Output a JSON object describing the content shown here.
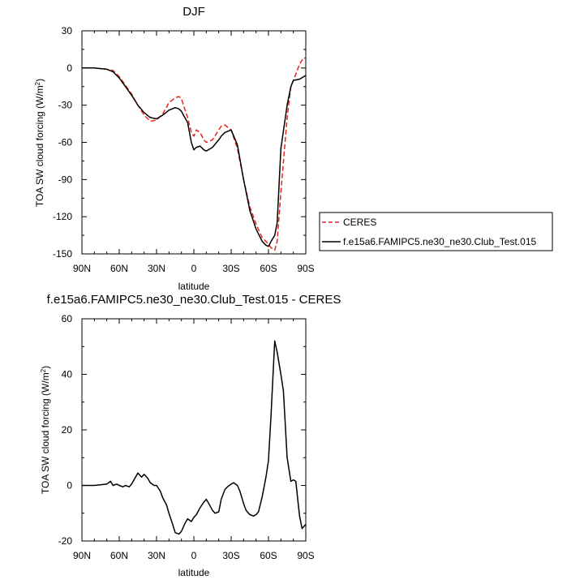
{
  "chart_data": [
    {
      "type": "line",
      "title": "DJF",
      "xlabel": "latitude",
      "ylabel": "TOA SW cloud forcing (W/m",
      "ylabel_sup": "2",
      "ylabel_close": ")",
      "xlim": [
        90,
        -90
      ],
      "ylim": [
        -150,
        30
      ],
      "xticks": [
        90,
        60,
        30,
        0,
        -30,
        -60,
        -90
      ],
      "xtick_labels": [
        "90N",
        "60N",
        "30N",
        "0",
        "30S",
        "60S",
        "90S"
      ],
      "yticks": [
        30,
        0,
        -30,
        -60,
        -90,
        -120,
        -150
      ],
      "ytick_labels": [
        "30",
        "0",
        "-30",
        "-60",
        "-90",
        "-120",
        "-150"
      ],
      "legend": "right",
      "series": [
        {
          "name": "CERES",
          "color": "#e8231f",
          "style": "dashed",
          "x": [
            90,
            80,
            70,
            65,
            60,
            55,
            50,
            45,
            40,
            35,
            30,
            25,
            20,
            15,
            12,
            10,
            5,
            2,
            0,
            -2,
            -5,
            -8,
            -10,
            -15,
            -20,
            -22,
            -25,
            -30,
            -35,
            -40,
            -45,
            -50,
            -55,
            -60,
            -62,
            -65,
            -67,
            -70,
            -75,
            -78,
            -80,
            -85,
            -88,
            -90
          ],
          "y": [
            0,
            0,
            -1,
            -2,
            -7,
            -14,
            -21,
            -30,
            -38,
            -43,
            -42,
            -37,
            -28,
            -24,
            -23,
            -25,
            -40,
            -52,
            -55,
            -50,
            -52,
            -58,
            -60,
            -58,
            -50,
            -47,
            -46,
            -50,
            -65,
            -90,
            -112,
            -126,
            -137,
            -142,
            -145,
            -147,
            -140,
            -100,
            -40,
            -15,
            -10,
            3,
            8,
            8
          ]
        },
        {
          "name": "f.e15a6.FAMIPC5.ne30_ne30.Club_Test.015",
          "color": "#000000",
          "style": "solid",
          "x": [
            90,
            80,
            70,
            65,
            60,
            55,
            50,
            45,
            40,
            35,
            30,
            25,
            20,
            15,
            12,
            10,
            5,
            2,
            0,
            -2,
            -5,
            -8,
            -10,
            -15,
            -20,
            -22,
            -25,
            -30,
            -35,
            -40,
            -45,
            -50,
            -55,
            -58,
            -60,
            -62,
            -65,
            -67,
            -70,
            -75,
            -78,
            -80,
            -85,
            -90
          ],
          "y": [
            0,
            0,
            -1,
            -3,
            -8,
            -15,
            -22,
            -30,
            -36,
            -40,
            -41,
            -38,
            -34,
            -32,
            -33,
            -35,
            -44,
            -60,
            -66,
            -64,
            -63,
            -66,
            -67,
            -64,
            -58,
            -55,
            -52,
            -50,
            -62,
            -90,
            -115,
            -130,
            -140,
            -143,
            -144,
            -140,
            -135,
            -125,
            -65,
            -30,
            -15,
            -10,
            -9,
            -6
          ]
        }
      ]
    },
    {
      "type": "line",
      "title": "f.e15a6.FAMIPC5.ne30_ne30.Club_Test.015 - CERES",
      "xlabel": "latitude",
      "ylabel": "TOA SW cloud forcing (W/m",
      "ylabel_sup": "2",
      "ylabel_close": ")",
      "xlim": [
        90,
        -90
      ],
      "ylim": [
        -20,
        60
      ],
      "xticks": [
        90,
        60,
        30,
        0,
        -30,
        -60,
        -90
      ],
      "xtick_labels": [
        "90N",
        "60N",
        "30N",
        "0",
        "30S",
        "60S",
        "90S"
      ],
      "yticks": [
        60,
        40,
        20,
        0,
        -20
      ],
      "ytick_labels": [
        "60",
        "40",
        "20",
        "0",
        "-20"
      ],
      "series": [
        {
          "name": "f.e15a6.FAMIPC5.ne30_ne30.Club_Test.015 - CERES",
          "color": "#000000",
          "style": "solid",
          "x": [
            90,
            80,
            70,
            67,
            65,
            62,
            60,
            57,
            55,
            52,
            50,
            45,
            42,
            40,
            37,
            35,
            32,
            30,
            27,
            25,
            22,
            20,
            17,
            15,
            12,
            10,
            7,
            5,
            2,
            0,
            -2,
            -5,
            -8,
            -10,
            -12,
            -15,
            -17,
            -20,
            -22,
            -25,
            -27,
            -30,
            -32,
            -35,
            -37,
            -40,
            -42,
            -45,
            -48,
            -50,
            -52,
            -55,
            -58,
            -60,
            -62,
            -65,
            -67,
            -70,
            -72,
            -75,
            -78,
            -80,
            -82,
            -85,
            -87,
            -88,
            -90
          ],
          "y": [
            0,
            0,
            0.5,
            1.5,
            0,
            0.5,
            0,
            -0.5,
            0,
            -0.5,
            0.5,
            4.5,
            3,
            4,
            2.5,
            1,
            0,
            0,
            -2,
            -4.5,
            -7,
            -10,
            -14,
            -17,
            -17.5,
            -16.5,
            -13.5,
            -12,
            -13,
            -11.5,
            -10.5,
            -8,
            -6,
            -5,
            -6.5,
            -9,
            -10,
            -9.5,
            -5,
            -1.5,
            -0.5,
            0.5,
            1,
            0,
            -2,
            -6.5,
            -9,
            -10.5,
            -11,
            -10.5,
            -9.5,
            -4,
            3,
            9,
            25,
            52,
            48,
            40,
            34,
            10,
            1.5,
            2,
            1.5,
            -11,
            -15.5,
            -15,
            -14
          ]
        }
      ]
    }
  ]
}
